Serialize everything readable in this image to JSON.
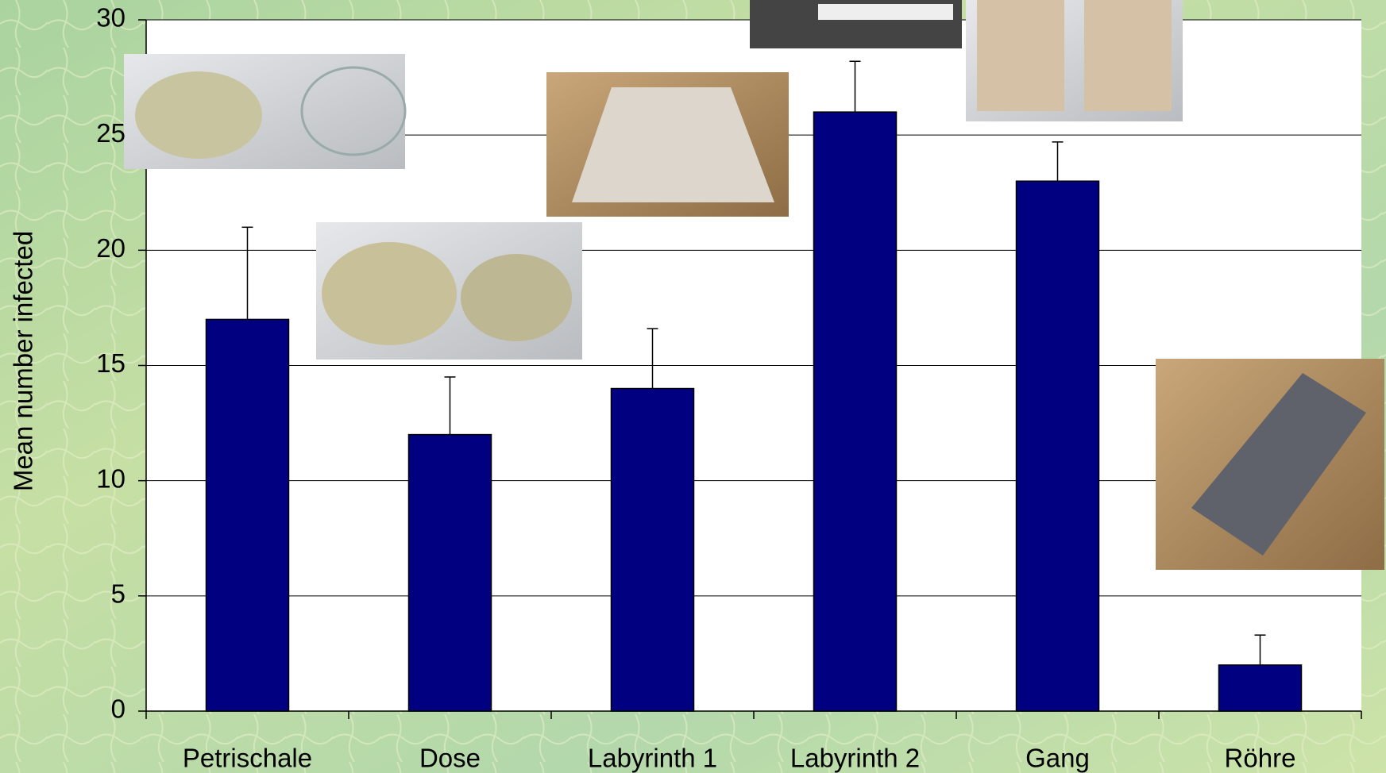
{
  "chart_data": {
    "type": "bar",
    "y_label": "Mean number infected",
    "categories": [
      "Petrischale",
      "Dose",
      "Labyrinth 1",
      "Labyrinth 2",
      "Gang",
      "Röhre"
    ],
    "values": [
      17,
      12,
      14,
      26,
      23,
      2
    ],
    "errors": [
      4,
      2.5,
      2.6,
      2.2,
      1.7,
      1.3
    ],
    "color": "#000080",
    "ylim": [
      0,
      30
    ],
    "yticks": [
      0,
      5,
      10,
      15,
      20,
      25,
      30
    ],
    "grid": true
  }
}
